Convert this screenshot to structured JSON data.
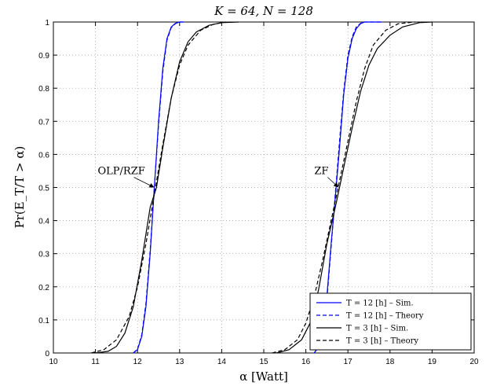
{
  "chart_data": {
    "type": "line",
    "title": "K = 64, N = 128",
    "xlabel": "α [Watt]",
    "ylabel": "Pr(E_T/T > α)",
    "xlim": [
      10,
      20
    ],
    "ylim": [
      0,
      1
    ],
    "xticks": [
      "10",
      "11",
      "12",
      "13",
      "14",
      "15",
      "16",
      "17",
      "18",
      "19",
      "20"
    ],
    "yticks": [
      "0",
      "0.1",
      "0.2",
      "0.3",
      "0.4",
      "0.5",
      "0.6",
      "0.7",
      "0.8",
      "0.9",
      "1"
    ],
    "grid": true,
    "legend_position": "bottom-right",
    "legend": [
      {
        "label": "T = 12 [h] – Sim.",
        "color": "#0000ff",
        "dash": "solid"
      },
      {
        "label": "T = 12 [h] – Theory",
        "color": "#0000ff",
        "dash": "dashed"
      },
      {
        "label": "T = 3 [h] – Sim.",
        "color": "#000000",
        "dash": "solid"
      },
      {
        "label": "T = 3 [h] – Theory",
        "color": "#000000",
        "dash": "dashed"
      }
    ],
    "annotations": [
      {
        "text": "OLP/RZF",
        "x": 12.4,
        "y": 0.5
      },
      {
        "text": "ZF",
        "x": 16.78,
        "y": 0.5
      }
    ],
    "series": [
      {
        "label_ref": 0,
        "color": "#0000ff",
        "dash": "solid",
        "x": [
          11.9,
          12.0,
          12.1,
          12.2,
          12.3,
          12.4,
          12.5,
          12.6,
          12.7,
          12.8,
          12.9,
          13.0,
          13.1
        ],
        "y": [
          0.0,
          0.01,
          0.05,
          0.14,
          0.3,
          0.5,
          0.7,
          0.86,
          0.95,
          0.985,
          0.996,
          1.0,
          1.0
        ]
      },
      {
        "label_ref": 1,
        "color": "#0000ff",
        "dash": "dashed",
        "x": [
          11.9,
          12.0,
          12.1,
          12.2,
          12.3,
          12.4,
          12.5,
          12.6,
          12.7,
          12.8,
          12.9,
          13.0,
          13.1
        ],
        "y": [
          0.0,
          0.012,
          0.055,
          0.15,
          0.31,
          0.5,
          0.69,
          0.85,
          0.945,
          0.983,
          0.995,
          1.0,
          1.0
        ]
      },
      {
        "label_ref": 2,
        "color": "#000000",
        "dash": "solid",
        "x": [
          11.0,
          11.3,
          11.5,
          11.7,
          11.9,
          12.1,
          12.3,
          12.45,
          12.6,
          12.8,
          13.0,
          13.2,
          13.4,
          13.7,
          14.0,
          14.4
        ],
        "y": [
          0.0,
          0.005,
          0.02,
          0.06,
          0.14,
          0.28,
          0.44,
          0.5,
          0.62,
          0.77,
          0.88,
          0.94,
          0.97,
          0.99,
          0.998,
          1.0
        ]
      },
      {
        "label_ref": 3,
        "color": "#000000",
        "dash": "dashed",
        "x": [
          10.9,
          11.2,
          11.5,
          11.8,
          12.0,
          12.2,
          12.4,
          12.6,
          12.8,
          13.0,
          13.2,
          13.5,
          13.8,
          14.1
        ],
        "y": [
          0.0,
          0.01,
          0.04,
          0.11,
          0.2,
          0.33,
          0.48,
          0.63,
          0.77,
          0.87,
          0.93,
          0.975,
          0.993,
          1.0
        ]
      },
      {
        "label_ref": 0,
        "color": "#0000ff",
        "dash": "solid",
        "x": [
          16.2,
          16.3,
          16.4,
          16.5,
          16.6,
          16.7,
          16.8,
          16.9,
          17.0,
          17.1,
          17.2,
          17.3,
          17.4,
          17.6,
          17.8
        ],
        "y": [
          0.0,
          0.02,
          0.07,
          0.17,
          0.33,
          0.47,
          0.62,
          0.78,
          0.89,
          0.95,
          0.98,
          0.995,
          1.0,
          1.0,
          1.0
        ]
      },
      {
        "label_ref": 1,
        "color": "#0000ff",
        "dash": "dashed",
        "x": [
          16.2,
          16.3,
          16.4,
          16.5,
          16.6,
          16.7,
          16.8,
          16.9,
          17.0,
          17.1,
          17.2,
          17.3,
          17.4,
          17.6,
          17.8
        ],
        "y": [
          0.0,
          0.018,
          0.065,
          0.16,
          0.32,
          0.48,
          0.64,
          0.79,
          0.9,
          0.955,
          0.985,
          0.996,
          1.0,
          1.0,
          1.0
        ]
      },
      {
        "label_ref": 2,
        "color": "#000000",
        "dash": "solid",
        "x": [
          15.3,
          15.6,
          15.9,
          16.1,
          16.3,
          16.5,
          16.7,
          16.8,
          16.9,
          17.1,
          17.3,
          17.5,
          17.7,
          18.0,
          18.3,
          18.7,
          19.0
        ],
        "y": [
          0.0,
          0.01,
          0.04,
          0.09,
          0.19,
          0.33,
          0.44,
          0.5,
          0.56,
          0.68,
          0.79,
          0.87,
          0.92,
          0.96,
          0.985,
          0.998,
          1.0
        ]
      },
      {
        "label_ref": 3,
        "color": "#000000",
        "dash": "dashed",
        "x": [
          15.2,
          15.5,
          15.8,
          16.0,
          16.2,
          16.4,
          16.6,
          16.8,
          17.0,
          17.2,
          17.4,
          17.6,
          17.9,
          18.2,
          18.6
        ],
        "y": [
          0.0,
          0.01,
          0.04,
          0.09,
          0.17,
          0.28,
          0.4,
          0.52,
          0.64,
          0.76,
          0.86,
          0.93,
          0.975,
          0.995,
          1.0
        ]
      }
    ]
  }
}
